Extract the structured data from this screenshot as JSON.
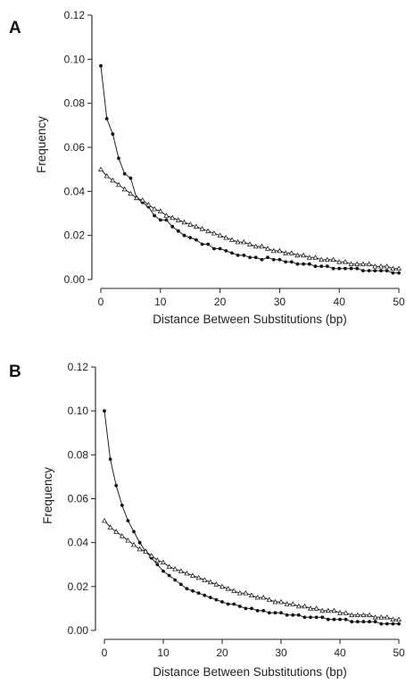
{
  "chart_data": [
    {
      "type": "line",
      "panel_label": "A",
      "xlabel": "Distance Between Substitutions (bp)",
      "ylabel": "Frequency",
      "xlim": [
        0,
        50
      ],
      "ylim": [
        0,
        0.12
      ],
      "xticks": [
        0,
        10,
        20,
        30,
        40,
        50
      ],
      "yticks": [
        "0.00",
        "0.02",
        "0.04",
        "0.06",
        "0.08",
        "0.10",
        "0.12"
      ],
      "grid": false,
      "legend": "none",
      "series": [
        {
          "marker": "dot",
          "x": [
            0,
            1,
            2,
            3,
            4,
            5,
            6,
            7,
            8,
            9,
            10,
            11,
            12,
            13,
            14,
            15,
            16,
            17,
            18,
            19,
            20,
            21,
            22,
            23,
            24,
            25,
            26,
            27,
            28,
            29,
            30,
            31,
            32,
            33,
            34,
            35,
            36,
            37,
            38,
            39,
            40,
            41,
            42,
            43,
            44,
            45,
            46,
            47,
            48,
            49,
            50
          ],
          "values": [
            0.097,
            0.073,
            0.066,
            0.055,
            0.048,
            0.046,
            0.037,
            0.035,
            0.033,
            0.029,
            0.027,
            0.027,
            0.024,
            0.022,
            0.02,
            0.019,
            0.018,
            0.016,
            0.016,
            0.014,
            0.014,
            0.013,
            0.012,
            0.011,
            0.011,
            0.01,
            0.01,
            0.009,
            0.01,
            0.009,
            0.009,
            0.008,
            0.008,
            0.007,
            0.007,
            0.007,
            0.006,
            0.006,
            0.006,
            0.005,
            0.005,
            0.005,
            0.005,
            0.005,
            0.004,
            0.004,
            0.004,
            0.004,
            0.004,
            0.003,
            0.003
          ]
        },
        {
          "marker": "triangle",
          "x": [
            0,
            1,
            2,
            3,
            4,
            5,
            6,
            7,
            8,
            9,
            10,
            11,
            12,
            13,
            14,
            15,
            16,
            17,
            18,
            19,
            20,
            21,
            22,
            23,
            24,
            25,
            26,
            27,
            28,
            29,
            30,
            31,
            32,
            33,
            34,
            35,
            36,
            37,
            38,
            39,
            40,
            41,
            42,
            43,
            44,
            45,
            46,
            47,
            48,
            49,
            50
          ],
          "values": [
            0.05,
            0.047,
            0.045,
            0.043,
            0.041,
            0.039,
            0.037,
            0.036,
            0.034,
            0.032,
            0.031,
            0.029,
            0.028,
            0.027,
            0.026,
            0.025,
            0.024,
            0.023,
            0.022,
            0.021,
            0.02,
            0.019,
            0.018,
            0.017,
            0.017,
            0.016,
            0.015,
            0.015,
            0.014,
            0.013,
            0.013,
            0.012,
            0.012,
            0.011,
            0.011,
            0.01,
            0.01,
            0.009,
            0.009,
            0.009,
            0.008,
            0.008,
            0.007,
            0.007,
            0.007,
            0.007,
            0.006,
            0.006,
            0.006,
            0.005,
            0.005
          ]
        }
      ]
    },
    {
      "type": "line",
      "panel_label": "B",
      "xlabel": "Distance Between Substitutions (bp)",
      "ylabel": "Frequency",
      "xlim": [
        0,
        50
      ],
      "ylim": [
        0,
        0.12
      ],
      "xticks": [
        0,
        10,
        20,
        30,
        40,
        50
      ],
      "yticks": [
        "0.00",
        "0.02",
        "0.04",
        "0.06",
        "0.08",
        "0.10",
        "0.12"
      ],
      "grid": false,
      "legend": "none",
      "series": [
        {
          "marker": "dot",
          "x": [
            0,
            1,
            2,
            3,
            4,
            5,
            6,
            7,
            8,
            9,
            10,
            11,
            12,
            13,
            14,
            15,
            16,
            17,
            18,
            19,
            20,
            21,
            22,
            23,
            24,
            25,
            26,
            27,
            28,
            29,
            30,
            31,
            32,
            33,
            34,
            35,
            36,
            37,
            38,
            39,
            40,
            41,
            42,
            43,
            44,
            45,
            46,
            47,
            48,
            49,
            50
          ],
          "values": [
            0.1,
            0.078,
            0.066,
            0.057,
            0.05,
            0.045,
            0.04,
            0.036,
            0.033,
            0.03,
            0.027,
            0.025,
            0.023,
            0.021,
            0.019,
            0.018,
            0.017,
            0.016,
            0.015,
            0.014,
            0.013,
            0.012,
            0.012,
            0.011,
            0.01,
            0.01,
            0.009,
            0.009,
            0.008,
            0.008,
            0.008,
            0.007,
            0.007,
            0.007,
            0.006,
            0.006,
            0.006,
            0.006,
            0.005,
            0.005,
            0.005,
            0.005,
            0.004,
            0.004,
            0.004,
            0.004,
            0.004,
            0.003,
            0.003,
            0.003,
            0.003
          ]
        },
        {
          "marker": "triangle",
          "x": [
            0,
            1,
            2,
            3,
            4,
            5,
            6,
            7,
            8,
            9,
            10,
            11,
            12,
            13,
            14,
            15,
            16,
            17,
            18,
            19,
            20,
            21,
            22,
            23,
            24,
            25,
            26,
            27,
            28,
            29,
            30,
            31,
            32,
            33,
            34,
            35,
            36,
            37,
            38,
            39,
            40,
            41,
            42,
            43,
            44,
            45,
            46,
            47,
            48,
            49,
            50
          ],
          "values": [
            0.05,
            0.047,
            0.045,
            0.043,
            0.041,
            0.039,
            0.037,
            0.036,
            0.034,
            0.032,
            0.031,
            0.029,
            0.028,
            0.027,
            0.026,
            0.025,
            0.024,
            0.023,
            0.022,
            0.021,
            0.02,
            0.019,
            0.018,
            0.017,
            0.017,
            0.016,
            0.015,
            0.015,
            0.014,
            0.013,
            0.013,
            0.012,
            0.012,
            0.011,
            0.011,
            0.01,
            0.01,
            0.009,
            0.009,
            0.009,
            0.008,
            0.008,
            0.007,
            0.007,
            0.007,
            0.007,
            0.006,
            0.006,
            0.006,
            0.005,
            0.005
          ]
        }
      ]
    }
  ]
}
